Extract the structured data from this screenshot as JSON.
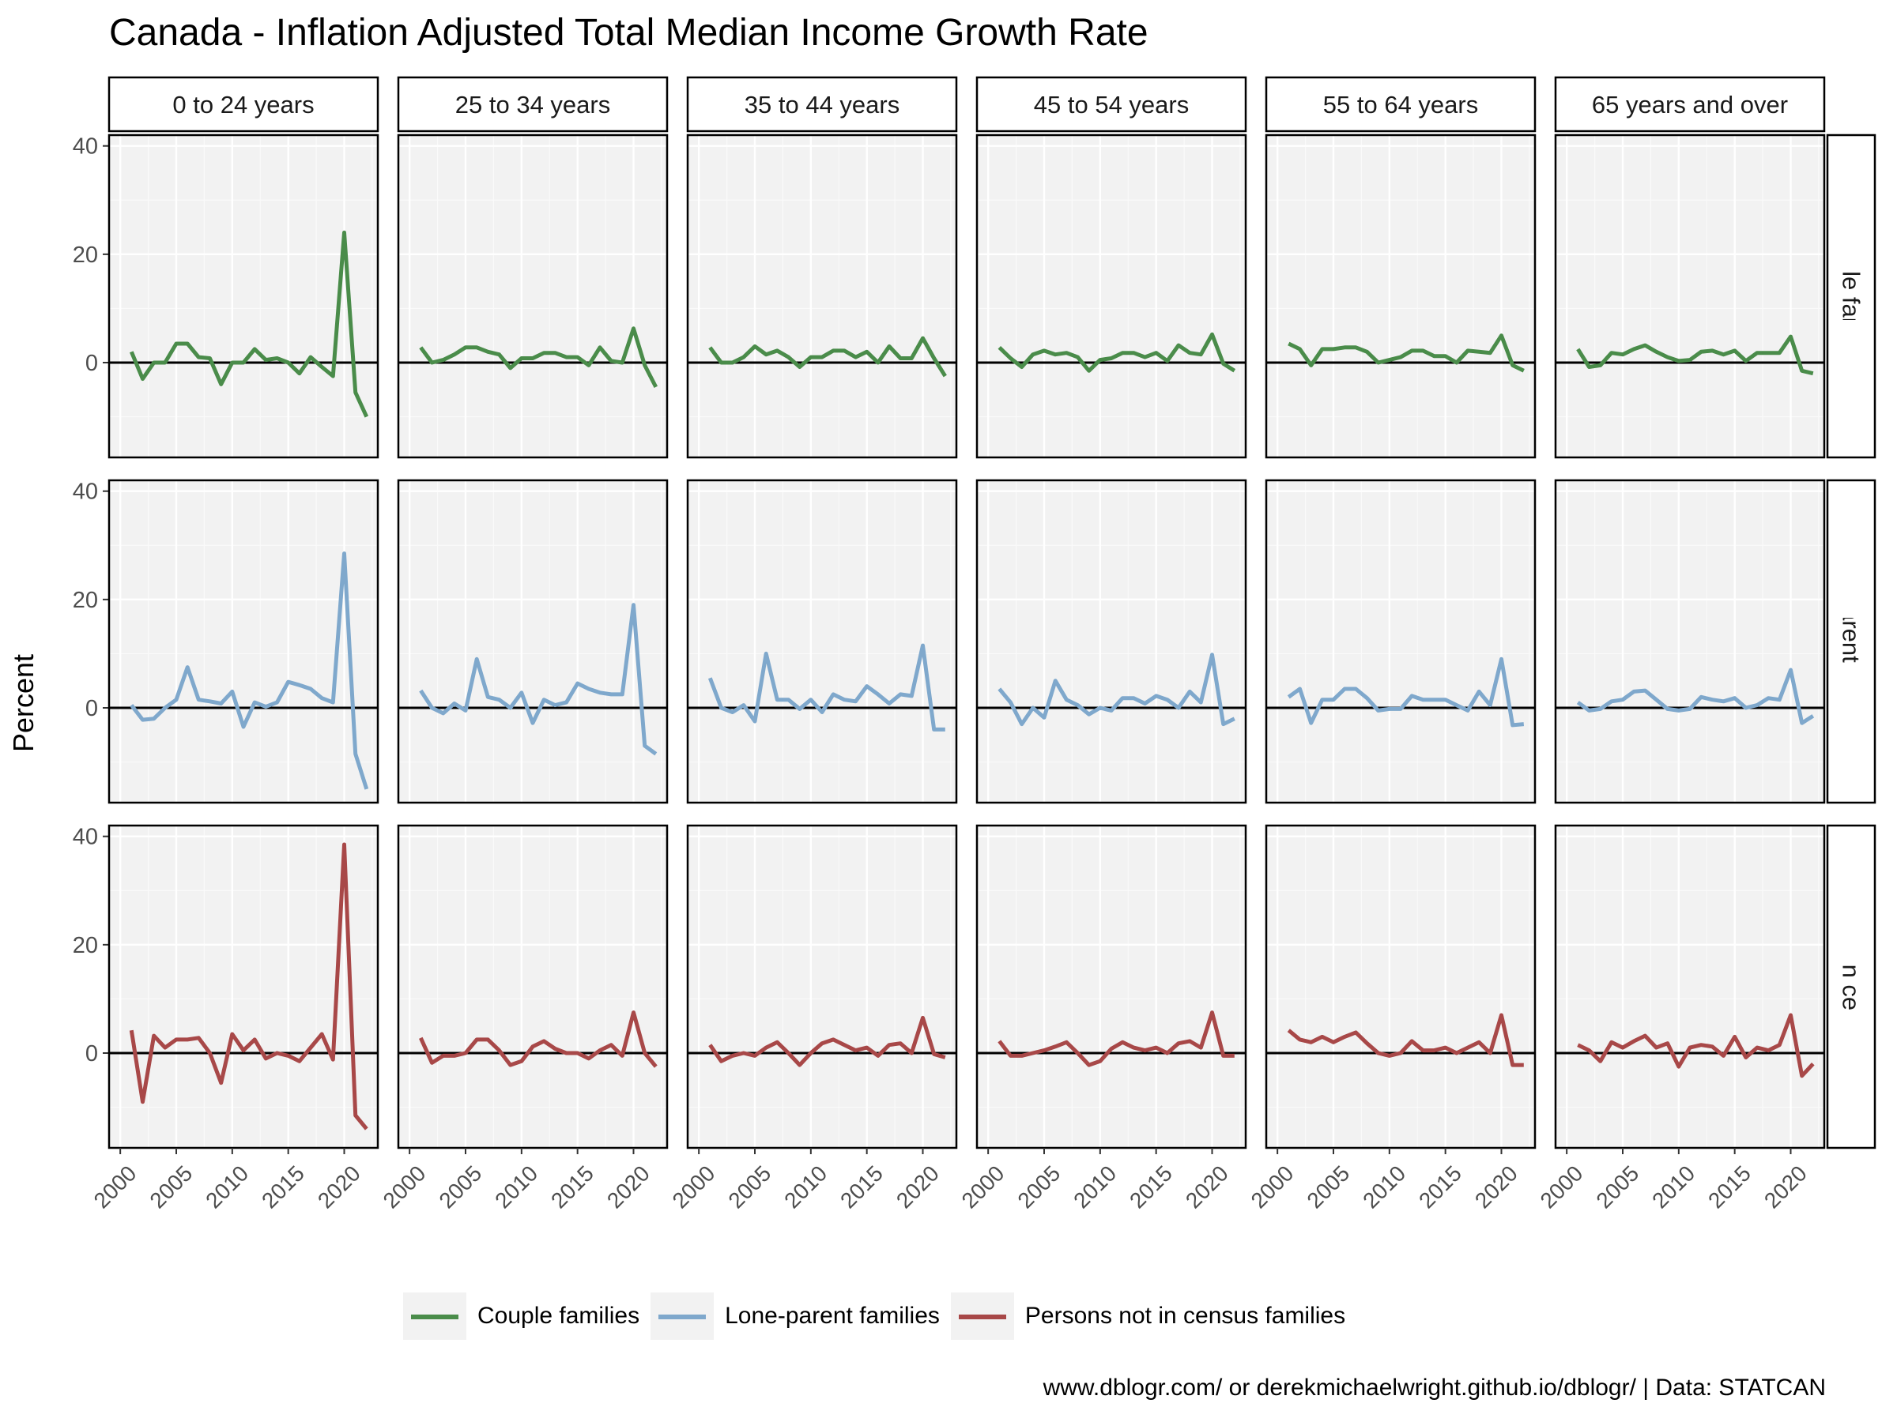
{
  "chart_data": {
    "type": "line",
    "title": "Canada - Inflation Adjusted Total Median Income Growth Rate",
    "ylabel": "Percent",
    "xlabel": "",
    "caption": "www.dblogr.com/ or derekmichaelwright.github.io/dblogr/ | Data: STATCAN",
    "xlim": [
      1999,
      2023
    ],
    "ylim": [
      -17.5,
      42
    ],
    "x_ticks": [
      2000,
      2005,
      2010,
      2015,
      2020
    ],
    "y_ticks": [
      0,
      20,
      40
    ],
    "reference_line_y": 0,
    "grid": true,
    "legend_position": "bottom",
    "columns": [
      "0 to 24 years",
      "25 to 34 years",
      "35 to 44 years",
      "45 to 54 years",
      "55 to 64 years",
      "65 years and over"
    ],
    "rows": [
      "Couple families",
      "Lone-parent families",
      "Persons not in census families"
    ],
    "row_colors": [
      "#4a8c4a",
      "#7fa8cc",
      "#a84848"
    ],
    "years": [
      2001,
      2002,
      2003,
      2004,
      2005,
      2006,
      2007,
      2008,
      2009,
      2010,
      2011,
      2012,
      2013,
      2014,
      2015,
      2016,
      2017,
      2018,
      2019,
      2020,
      2021,
      2022
    ],
    "series": [
      {
        "name": "Couple families",
        "panels": [
          [
            2.0,
            -3.0,
            0.0,
            0.0,
            3.5,
            3.5,
            1.0,
            0.8,
            -4.0,
            0.0,
            0.0,
            2.5,
            0.5,
            0.8,
            0.0,
            -2.0,
            1.0,
            -0.8,
            -2.5,
            24.0,
            -5.5,
            -10.0
          ],
          [
            2.8,
            0.0,
            0.5,
            1.5,
            2.8,
            2.8,
            2.0,
            1.5,
            -1.0,
            0.8,
            0.8,
            1.8,
            1.8,
            1.0,
            1.0,
            -0.5,
            2.8,
            0.3,
            0.0,
            6.3,
            -0.5,
            -4.5
          ],
          [
            2.8,
            0.0,
            0.0,
            1.0,
            3.0,
            1.5,
            2.2,
            1.0,
            -0.8,
            1.0,
            1.0,
            2.2,
            2.2,
            1.0,
            2.0,
            0.0,
            3.0,
            0.8,
            0.8,
            4.5,
            0.8,
            -2.5
          ],
          [
            2.8,
            0.8,
            -0.8,
            1.5,
            2.2,
            1.5,
            1.8,
            1.0,
            -1.5,
            0.5,
            0.8,
            1.8,
            1.8,
            1.0,
            1.8,
            0.3,
            3.2,
            1.8,
            1.5,
            5.2,
            -0.2,
            -1.5
          ],
          [
            3.5,
            2.5,
            -0.5,
            2.5,
            2.5,
            2.8,
            2.8,
            2.0,
            0.0,
            0.5,
            1.0,
            2.2,
            2.2,
            1.2,
            1.2,
            0.0,
            2.2,
            2.0,
            1.8,
            5.0,
            -0.5,
            -1.5
          ],
          [
            2.5,
            -0.8,
            -0.5,
            1.8,
            1.5,
            2.5,
            3.2,
            2.0,
            1.0,
            0.3,
            0.5,
            2.0,
            2.2,
            1.5,
            2.2,
            0.3,
            1.8,
            1.8,
            1.8,
            4.8,
            -1.5,
            -2.0
          ]
        ]
      },
      {
        "name": "Lone-parent families",
        "panels": [
          [
            0.5,
            -2.2,
            -2.0,
            0.0,
            1.5,
            7.5,
            1.5,
            1.2,
            0.8,
            3.0,
            -3.5,
            1.0,
            0.2,
            1.0,
            4.8,
            4.2,
            3.5,
            1.8,
            1.0,
            28.5,
            -8.5,
            -15.0
          ],
          [
            3.2,
            0.0,
            -1.0,
            0.8,
            -0.5,
            9.0,
            2.0,
            1.5,
            0.0,
            2.8,
            -2.8,
            1.5,
            0.5,
            1.0,
            4.5,
            3.5,
            2.8,
            2.5,
            2.5,
            19.0,
            -7.0,
            -8.5
          ],
          [
            5.5,
            0.0,
            -0.8,
            0.5,
            -2.5,
            10.0,
            1.5,
            1.5,
            -0.2,
            1.5,
            -0.8,
            2.5,
            1.5,
            1.2,
            4.0,
            2.5,
            0.8,
            2.5,
            2.2,
            11.5,
            -4.0,
            -4.0
          ],
          [
            3.5,
            1.0,
            -3.0,
            0.0,
            -1.8,
            5.0,
            1.5,
            0.5,
            -1.2,
            0.0,
            -0.5,
            1.8,
            1.8,
            0.8,
            2.2,
            1.5,
            0.0,
            3.0,
            1.0,
            9.8,
            -3.0,
            -2.0
          ],
          [
            2.0,
            3.5,
            -2.8,
            1.5,
            1.5,
            3.5,
            3.5,
            1.8,
            -0.5,
            -0.2,
            -0.2,
            2.2,
            1.5,
            1.5,
            1.5,
            0.5,
            -0.5,
            3.0,
            0.5,
            9.0,
            -3.2,
            -3.0
          ],
          [
            1.0,
            -0.5,
            -0.2,
            1.2,
            1.5,
            3.0,
            3.2,
            1.5,
            -0.2,
            -0.5,
            -0.2,
            2.0,
            1.5,
            1.2,
            1.8,
            0.0,
            0.5,
            1.8,
            1.5,
            7.0,
            -2.8,
            -1.5
          ]
        ]
      },
      {
        "name": "Persons not in census families",
        "panels": [
          [
            4.2,
            -9.0,
            3.2,
            1.0,
            2.5,
            2.5,
            2.8,
            0.0,
            -5.5,
            3.5,
            0.5,
            2.5,
            -1.0,
            0.0,
            -0.5,
            -1.5,
            1.0,
            3.5,
            -1.2,
            38.5,
            -11.5,
            -14.0
          ],
          [
            2.8,
            -1.8,
            -0.5,
            -0.5,
            0.0,
            2.5,
            2.5,
            0.5,
            -2.2,
            -1.5,
            1.2,
            2.2,
            0.8,
            0.0,
            0.0,
            -1.0,
            0.5,
            1.5,
            -0.5,
            7.5,
            0.0,
            -2.5
          ],
          [
            1.5,
            -1.5,
            -0.5,
            0.0,
            -0.5,
            1.0,
            2.0,
            0.0,
            -2.2,
            0.0,
            1.8,
            2.5,
            1.5,
            0.5,
            1.0,
            -0.5,
            1.5,
            1.8,
            0.0,
            6.5,
            -0.2,
            -0.8
          ],
          [
            2.2,
            -0.5,
            -0.5,
            0.0,
            0.5,
            1.2,
            2.0,
            0.0,
            -2.2,
            -1.5,
            0.8,
            2.0,
            1.0,
            0.5,
            1.0,
            0.0,
            1.8,
            2.2,
            1.0,
            7.5,
            -0.5,
            -0.5
          ],
          [
            4.2,
            2.5,
            2.0,
            3.0,
            2.0,
            3.0,
            3.8,
            1.8,
            0.0,
            -0.5,
            0.0,
            2.2,
            0.5,
            0.5,
            1.0,
            0.0,
            1.0,
            2.0,
            0.0,
            7.0,
            -2.2,
            -2.2
          ],
          [
            1.5,
            0.5,
            -1.5,
            2.0,
            1.0,
            2.2,
            3.2,
            1.0,
            1.8,
            -2.5,
            1.0,
            1.5,
            1.2,
            -0.5,
            3.0,
            -0.8,
            1.0,
            0.5,
            1.5,
            7.0,
            -4.2,
            -2.0
          ]
        ]
      }
    ]
  }
}
